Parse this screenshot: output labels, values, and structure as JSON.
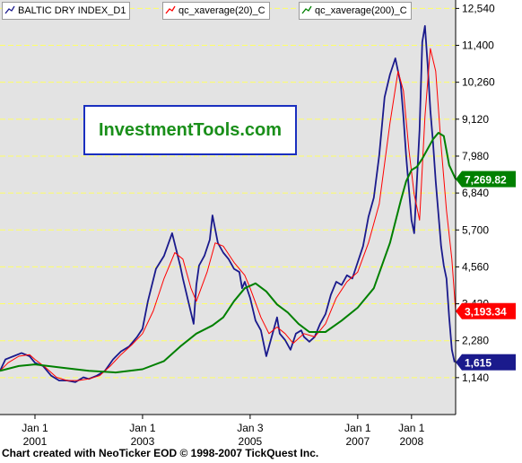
{
  "legend": [
    {
      "label": "BALTIC DRY INDEX_D1",
      "color": "#1a1a8c"
    },
    {
      "label": "qc_xaverage(20)_C",
      "color": "#ff0000"
    },
    {
      "label": "qc_xaverage(200)_C",
      "color": "#008000"
    }
  ],
  "watermark": "InvestmentTools.com",
  "credit": "Chart created with NeoTicker EOD © 1998-2007 TickQuest Inc.",
  "chart_data": {
    "type": "line",
    "title": "",
    "xlabel": "",
    "ylabel": "",
    "ylim": [
      0,
      12800
    ],
    "xlim": [
      2000.35,
      2008.82
    ],
    "y_ticks": [
      1140,
      2280,
      3420,
      4560,
      5700,
      6840,
      7980,
      9120,
      10260,
      11400,
      12540
    ],
    "y_tick_labels": [
      "1,140",
      "2,280",
      "3,420",
      "4,560",
      "5,700",
      "6,840",
      "7,980",
      "9,120",
      "10,260",
      "11,400",
      "12,540"
    ],
    "x_ticks": [
      {
        "x": 2001.0,
        "line1": "Jan 1",
        "line2": "2001"
      },
      {
        "x": 2003.0,
        "line1": "Jan 1",
        "line2": "2003"
      },
      {
        "x": 2005.0,
        "line1": "Jan 3",
        "line2": "2005"
      },
      {
        "x": 2007.0,
        "line1": "Jan 1",
        "line2": "2007"
      },
      {
        "x": 2008.0,
        "line1": "Jan 1",
        "line2": "2008"
      }
    ],
    "grid": true,
    "background": "#e3e3e3",
    "grid_color": "#ffff66",
    "last_values": [
      {
        "label": "7,269.82",
        "value": 7269.82,
        "color": "#008000"
      },
      {
        "label": "3,193.34",
        "value": 3193.34,
        "color": "#ff0000"
      },
      {
        "label": "1,615",
        "value": 1615,
        "color": "#1a1a8c"
      }
    ],
    "series": [
      {
        "name": "BALTIC DRY INDEX_D1",
        "color": "#1a1a8c",
        "x": [
          2000.35,
          2000.45,
          2000.6,
          2000.75,
          2000.9,
          2001.0,
          2001.15,
          2001.3,
          2001.45,
          2001.6,
          2001.75,
          2001.9,
          2002.0,
          2002.15,
          2002.3,
          2002.45,
          2002.6,
          2002.75,
          2002.9,
          2003.0,
          2003.1,
          2003.25,
          2003.4,
          2003.55,
          2003.7,
          2003.75,
          2003.85,
          2003.95,
          2004.0,
          2004.05,
          2004.15,
          2004.25,
          2004.3,
          2004.4,
          2004.5,
          2004.6,
          2004.7,
          2004.8,
          2004.85,
          2004.9,
          2005.0,
          2005.1,
          2005.2,
          2005.3,
          2005.4,
          2005.5,
          2005.55,
          2005.65,
          2005.75,
          2005.85,
          2005.95,
          2006.0,
          2006.1,
          2006.2,
          2006.3,
          2006.4,
          2006.5,
          2006.6,
          2006.7,
          2006.8,
          2006.9,
          2007.0,
          2007.1,
          2007.2,
          2007.3,
          2007.4,
          2007.5,
          2007.6,
          2007.7,
          2007.8,
          2007.85,
          2007.9,
          2007.95,
          2008.0,
          2008.05,
          2008.1,
          2008.15,
          2008.2,
          2008.25,
          2008.3,
          2008.35,
          2008.4,
          2008.45,
          2008.5,
          2008.55,
          2008.6,
          2008.65,
          2008.7,
          2008.75,
          2008.8
        ],
        "values": [
          1350,
          1700,
          1800,
          1900,
          1800,
          1600,
          1500,
          1200,
          1050,
          1050,
          1000,
          1150,
          1100,
          1200,
          1350,
          1700,
          1950,
          2100,
          2400,
          2650,
          3500,
          4500,
          4900,
          5600,
          4600,
          4200,
          3500,
          2800,
          4000,
          4600,
          4900,
          5400,
          6150,
          5300,
          5000,
          4800,
          4500,
          4400,
          3900,
          4100,
          3600,
          2900,
          2600,
          1800,
          2400,
          3000,
          2500,
          2300,
          2000,
          2500,
          2600,
          2400,
          2250,
          2400,
          2800,
          3100,
          3700,
          4100,
          4000,
          4300,
          4200,
          4700,
          5200,
          6100,
          6700,
          8000,
          9800,
          10500,
          11000,
          10200,
          9200,
          8000,
          7000,
          6000,
          5600,
          7200,
          8800,
          11500,
          12000,
          10800,
          9400,
          8400,
          7200,
          6200,
          5200,
          4600,
          4200,
          3000,
          2000,
          1615
        ]
      },
      {
        "name": "qc_xaverage(20)_C",
        "color": "#ff0000",
        "x": [
          2000.35,
          2000.5,
          2000.7,
          2000.9,
          2001.0,
          2001.2,
          2001.4,
          2001.6,
          2001.8,
          2002.0,
          2002.2,
          2002.4,
          2002.6,
          2002.8,
          2003.0,
          2003.2,
          2003.4,
          2003.6,
          2003.75,
          2003.9,
          2004.0,
          2004.2,
          2004.35,
          2004.5,
          2004.7,
          2004.9,
          2005.0,
          2005.2,
          2005.35,
          2005.5,
          2005.65,
          2005.8,
          2006.0,
          2006.2,
          2006.4,
          2006.6,
          2006.8,
          2007.0,
          2007.2,
          2007.4,
          2007.6,
          2007.75,
          2007.85,
          2007.95,
          2008.05,
          2008.15,
          2008.25,
          2008.35,
          2008.45,
          2008.55,
          2008.65,
          2008.75,
          2008.82
        ],
        "values": [
          1350,
          1600,
          1800,
          1850,
          1700,
          1450,
          1150,
          1050,
          1050,
          1100,
          1200,
          1500,
          1850,
          2150,
          2500,
          3200,
          4200,
          5000,
          4800,
          3900,
          3500,
          4400,
          5300,
          5200,
          4700,
          4300,
          3900,
          3000,
          2500,
          2700,
          2500,
          2200,
          2500,
          2400,
          2800,
          3600,
          4100,
          4400,
          5300,
          6500,
          9000,
          10600,
          10000,
          8200,
          6800,
          6000,
          9200,
          11300,
          10600,
          8300,
          6300,
          4800,
          3193.34
        ]
      },
      {
        "name": "qc_xaverage(200)_C",
        "color": "#008000",
        "x": [
          2000.35,
          2000.7,
          2001.0,
          2001.5,
          2002.0,
          2002.5,
          2003.0,
          2003.4,
          2003.7,
          2004.0,
          2004.3,
          2004.5,
          2004.7,
          2004.9,
          2005.1,
          2005.3,
          2005.5,
          2005.7,
          2005.9,
          2006.1,
          2006.4,
          2006.7,
          2007.0,
          2007.3,
          2007.6,
          2007.8,
          2007.9,
          2008.0,
          2008.1,
          2008.2,
          2008.3,
          2008.4,
          2008.5,
          2008.6,
          2008.7,
          2008.82
        ],
        "values": [
          1350,
          1500,
          1550,
          1450,
          1350,
          1300,
          1400,
          1650,
          2100,
          2500,
          2750,
          3000,
          3500,
          3900,
          4050,
          3800,
          3400,
          3150,
          2800,
          2550,
          2550,
          2900,
          3300,
          3900,
          5300,
          6600,
          7200,
          7550,
          7650,
          7900,
          8200,
          8500,
          8700,
          8600,
          7700,
          7269.82
        ]
      }
    ]
  }
}
